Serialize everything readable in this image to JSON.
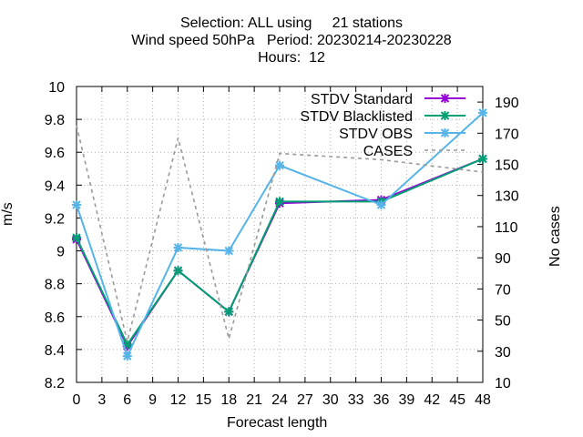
{
  "chart_data": {
    "type": "line",
    "title_lines": [
      "Selection: ALL using     21 stations",
      "Wind speed 50hPa   Period: 20230214-20230228",
      "Hours:  12"
    ],
    "xlabel": "Forecast length",
    "ylabel": "m/s",
    "y2label": "No cases",
    "xlim": [
      0,
      48
    ],
    "ylim": [
      8.2,
      10
    ],
    "y2lim": [
      10,
      200
    ],
    "x_ticks": [
      0,
      3,
      6,
      9,
      12,
      15,
      18,
      21,
      24,
      27,
      30,
      33,
      36,
      39,
      42,
      45,
      48
    ],
    "y_ticks": [
      "8.2",
      "8.4",
      "8.6",
      "8.8",
      "9",
      "9.2",
      "9.4",
      "9.6",
      "9.8",
      "10"
    ],
    "y2_ticks": [
      10,
      30,
      50,
      70,
      90,
      110,
      130,
      150,
      170,
      190
    ],
    "grid": true,
    "legend_position": "top-right",
    "x": [
      0,
      6,
      12,
      18,
      24,
      36,
      48
    ],
    "series": [
      {
        "name": "STDV Standard",
        "axis": "y",
        "color": "#9400d3",
        "style": "solid",
        "marker": "x",
        "values": [
          9.07,
          8.42,
          8.88,
          8.63,
          9.29,
          9.31,
          9.56
        ]
      },
      {
        "name": "STDV Blacklisted",
        "axis": "y",
        "color": "#009e73",
        "style": "solid",
        "marker": "x",
        "values": [
          9.08,
          8.43,
          8.88,
          8.63,
          9.3,
          9.3,
          9.56
        ]
      },
      {
        "name": "STDV OBS",
        "axis": "y",
        "color": "#56b4e9",
        "style": "solid",
        "marker": "x",
        "values": [
          9.28,
          8.36,
          9.02,
          9.0,
          9.52,
          9.28,
          9.84
        ]
      },
      {
        "name": "CASES",
        "axis": "y2",
        "color": "#999999",
        "style": "dashed",
        "marker": "none",
        "values": [
          175,
          36,
          167,
          38,
          157,
          153,
          145
        ]
      }
    ]
  }
}
